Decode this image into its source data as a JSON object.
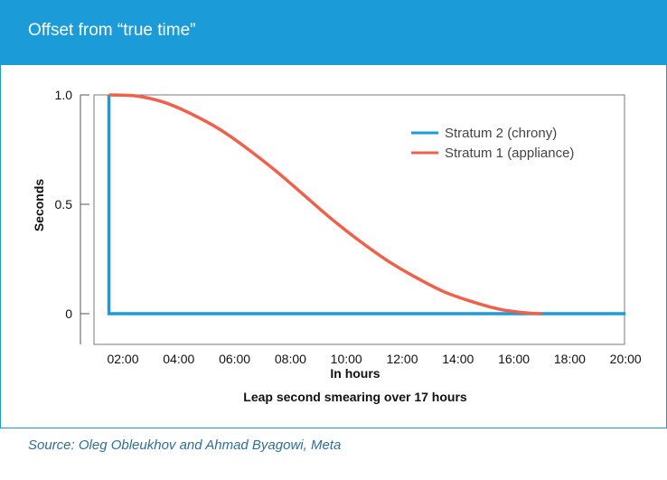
{
  "header": {
    "title": "Offset from “true time”"
  },
  "footer": {
    "source": "Source: Oleg Obleukhov and Ahmad Byagowi, Meta"
  },
  "colors": {
    "header_bg": "#1b9bd7",
    "stratum2": "#1b9bd7",
    "stratum1": "#f0604a"
  },
  "chart_data": {
    "type": "line",
    "title": "Leap second smearing over 17 hours",
    "xlabel": "In hours",
    "ylabel": "Seconds",
    "x_tick_labels": [
      "02:00",
      "04:00",
      "06:00",
      "08:00",
      "10:00",
      "12:00",
      "14:00",
      "16:00",
      "18:00",
      "20:00"
    ],
    "y_tick_labels": [
      "1.0",
      "0.5",
      "0"
    ],
    "y_ticks": [
      1.0,
      0.5,
      0
    ],
    "xlim_hours": [
      1.75,
      20.5
    ],
    "ylim": [
      -0.15,
      1.0
    ],
    "legend_position": "top-right",
    "series": [
      {
        "name": "Stratum 2 (chrony)",
        "color": "#1b9bd7",
        "x_hours": [
          1.5,
          1.5,
          20.0
        ],
        "y": [
          1.0,
          0,
          0
        ]
      },
      {
        "name": "Stratum 1 (appliance)",
        "color": "#f0604a",
        "x_hours": [
          1.5,
          2.5,
          3.5,
          4.5,
          5.5,
          6.5,
          7.5,
          8.5,
          9.5,
          10.5,
          11.5,
          12.5,
          13.5,
          14.5,
          15.5,
          16.5,
          17.0
        ],
        "y": [
          1.0,
          0.995,
          0.965,
          0.91,
          0.84,
          0.75,
          0.65,
          0.54,
          0.43,
          0.33,
          0.24,
          0.165,
          0.1,
          0.055,
          0.02,
          0.003,
          0.0
        ]
      }
    ]
  }
}
